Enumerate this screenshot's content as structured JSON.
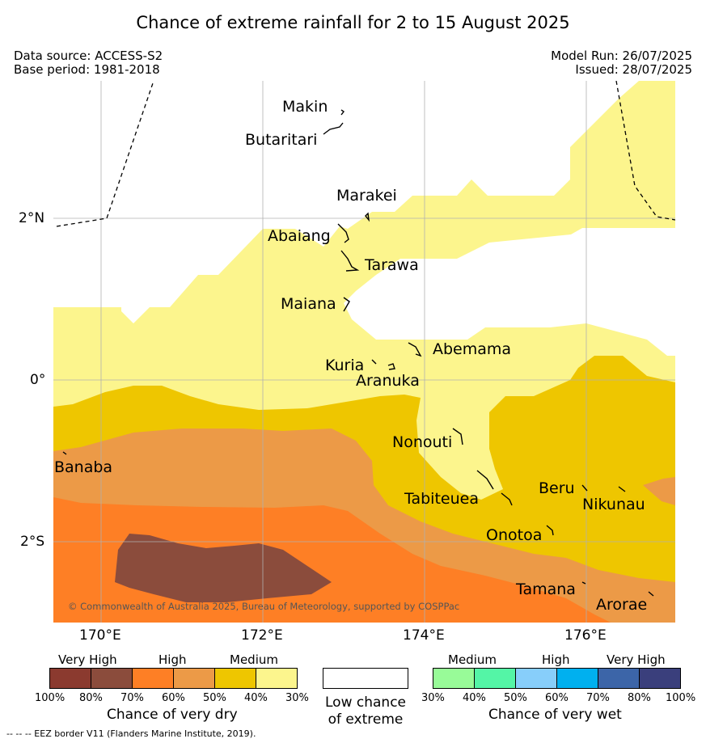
{
  "title": "Chance of extreme rainfall for 2 to 15 August 2025",
  "data_source": "Data source: ACCESS-S2",
  "base_period": "Base period: 1981-2018",
  "model_run": "Model Run: 26/07/2025",
  "issued": "Issued: 28/07/2025",
  "latitude_labels": [
    "2°N",
    "0°",
    "2°S"
  ],
  "longitude_labels": [
    "170°E",
    "172°E",
    "174°E",
    "176°E"
  ],
  "islands": {
    "makin": "Makin",
    "butaritari": "Butaritari",
    "marakei": "Marakei",
    "abaiang": "Abaiang",
    "tarawa": "Tarawa",
    "maiana": "Maiana",
    "abemama": "Abemama",
    "kuria": "Kuria",
    "aranuka": "Aranuka",
    "nonouti": "Nonouti",
    "banaba": "Banaba",
    "tabiteuea": "Tabiteuea",
    "beru": "Beru",
    "nikunau": "Nikunau",
    "onotoa": "Onotoa",
    "tamana": "Tamana",
    "arorae": "Arorae"
  },
  "copyright": "© Commonwealth of Australia 2025, Bureau of Meteorology, supported by COSPPac",
  "legend": {
    "dry": {
      "categories": [
        "Very High",
        "High",
        "Medium"
      ],
      "colors": [
        "#8b3a2f",
        "#8b4c3c",
        "#fe7f25",
        "#ec9a47",
        "#eec600",
        "#fcf58d"
      ],
      "percent_labels": [
        "100%",
        "80%",
        "70%",
        "60%",
        "50%",
        "40%",
        "30%"
      ],
      "title": "Chance of very dry"
    },
    "low": {
      "title_line1": "Low chance",
      "title_line2": "of extreme",
      "color": "#ffffff"
    },
    "wet": {
      "categories": [
        "Medium",
        "High",
        "Very High"
      ],
      "colors": [
        "#98fb98",
        "#54f5a6",
        "#87cefa",
        "#00b0ef",
        "#3c65a8",
        "#3a3f7c"
      ],
      "percent_labels": [
        "30%",
        "40%",
        "50%",
        "60%",
        "70%",
        "80%",
        "100%"
      ],
      "title": "Chance of very wet"
    }
  },
  "footnote": "--  --  -- EEZ border V11 (Flanders Marine Institute, 2019)."
}
